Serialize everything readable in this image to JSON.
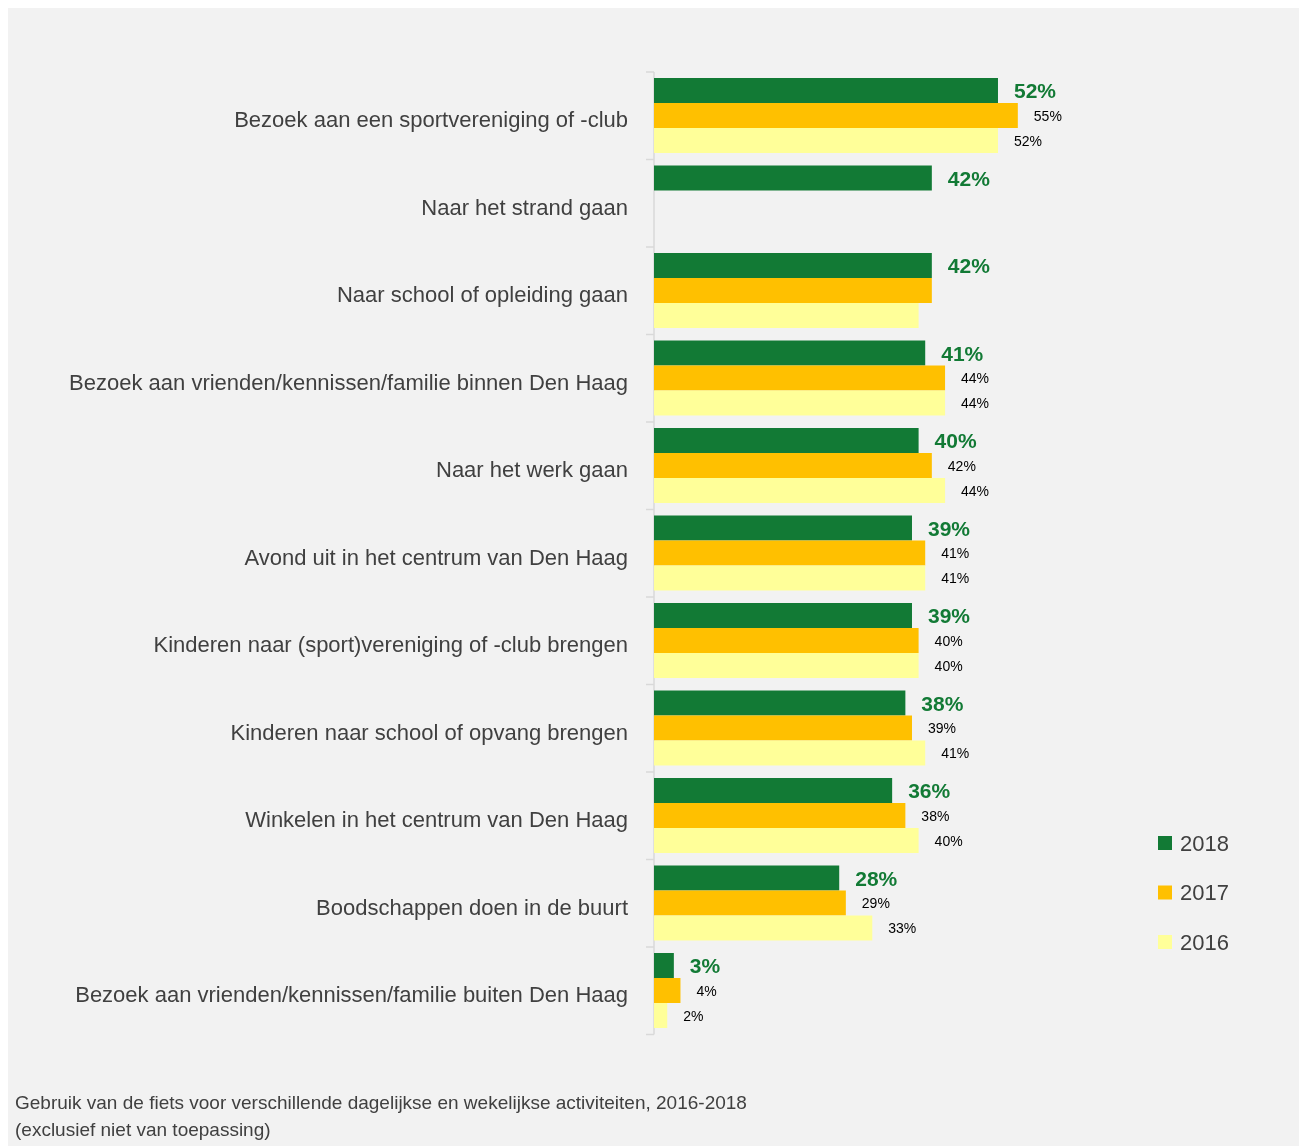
{
  "chart_data": {
    "type": "bar",
    "orientation": "horizontal",
    "legend": "right",
    "categories": [
      "Bezoek aan een sportvereniging of -club",
      "Naar het strand gaan",
      "Naar school of opleiding gaan",
      "Bezoek aan vrienden/kennissen/familie binnen Den Haag",
      "Naar het werk gaan",
      "Avond uit in het centrum van Den Haag",
      "Kinderen naar (sport)vereniging of -club brengen",
      "Kinderen naar school of opvang brengen",
      "Winkelen in het centrum van Den Haag",
      "Boodschappen doen in de buurt",
      "Bezoek aan vrienden/kennissen/familie buiten Den Haag"
    ],
    "series": [
      {
        "name": "2018",
        "color": "#127a35",
        "values": [
          52,
          42,
          42,
          41,
          40,
          39,
          39,
          38,
          36,
          28,
          3
        ],
        "value_labels": [
          "52%",
          "42%",
          "42%",
          "41%",
          "40%",
          "39%",
          "39%",
          "38%",
          "36%",
          "28%",
          "3%"
        ]
      },
      {
        "name": "2017",
        "color": "#ffc000",
        "values": [
          55,
          null,
          42,
          44,
          42,
          41,
          40,
          39,
          38,
          29,
          4
        ],
        "value_labels": [
          "55%",
          null,
          null,
          "44%",
          "42%",
          "41%",
          "40%",
          "39%",
          "38%",
          "29%",
          "4%"
        ]
      },
      {
        "name": "2016",
        "color": "#ffff99",
        "values": [
          52,
          null,
          40,
          44,
          44,
          41,
          40,
          41,
          40,
          33,
          2
        ],
        "value_labels": [
          "52%",
          null,
          null,
          "44%",
          "44%",
          "41%",
          "40%",
          "41%",
          "40%",
          "33%",
          "2%"
        ]
      }
    ],
    "annotations": [
      "Gebruik van de fiets voor verschillende dagelijkse en wekelijkse activiteiten, 2016-2018",
      "(exclusief niet van toepassing)"
    ]
  }
}
